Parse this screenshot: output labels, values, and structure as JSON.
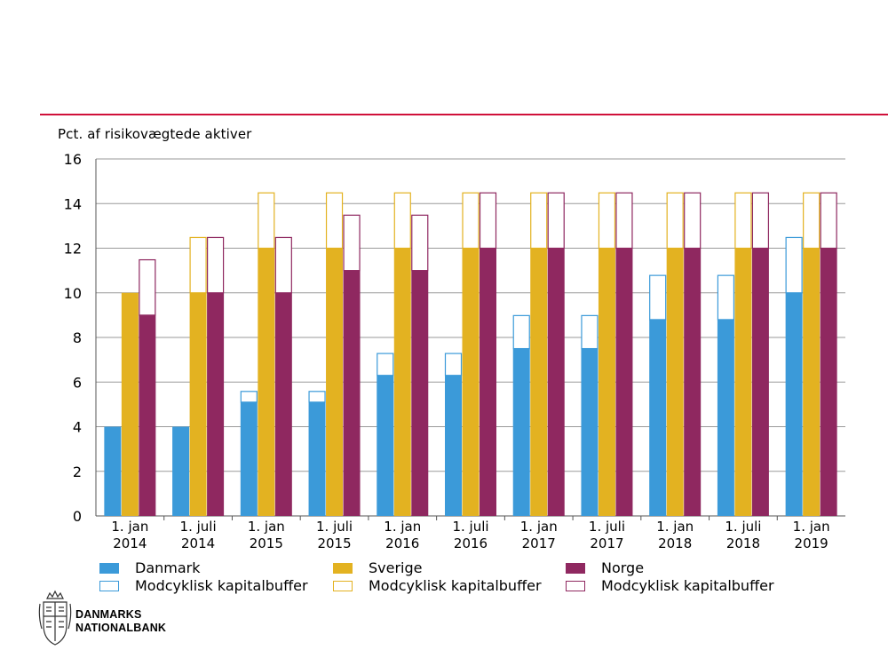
{
  "unit_label": "Pct. af risikovægtede aktiver",
  "colors": {
    "danmark": "#3b9ad9",
    "sverige": "#e3b221",
    "norge": "#8f2860",
    "rule": "#d0103a",
    "grid": "#9a9a9a"
  },
  "chart_data": {
    "type": "bar",
    "stacked_per_country": true,
    "title": "",
    "ylabel": "Pct. af risikovægtede aktiver",
    "ylim": [
      0,
      16
    ],
    "yticks": [
      0,
      2,
      4,
      6,
      8,
      10,
      12,
      14,
      16
    ],
    "grid": true,
    "categories": [
      [
        "1. jan",
        "2014"
      ],
      [
        "1. juli",
        "2014"
      ],
      [
        "1. jan",
        "2015"
      ],
      [
        "1. juli",
        "2015"
      ],
      [
        "1. jan",
        "2016"
      ],
      [
        "1. juli",
        "2016"
      ],
      [
        "1. jan",
        "2017"
      ],
      [
        "1. juli",
        "2017"
      ],
      [
        "1. jan",
        "2018"
      ],
      [
        "1. juli",
        "2018"
      ],
      [
        "1. jan",
        "2019"
      ]
    ],
    "series": [
      {
        "name": "Danmark",
        "key": "danmark",
        "values": [
          4,
          4,
          5.1,
          5.1,
          6.3,
          6.3,
          7.5,
          7.5,
          8.8,
          8.8,
          10
        ],
        "buffer": [
          0,
          0,
          0.5,
          0.5,
          1,
          1,
          1.5,
          1.5,
          2,
          2,
          2.5
        ]
      },
      {
        "name": "Sverige",
        "key": "sverige",
        "values": [
          10,
          10,
          12,
          12,
          12,
          12,
          12,
          12,
          12,
          12,
          12
        ],
        "buffer": [
          0,
          2.5,
          2.5,
          2.5,
          2.5,
          2.5,
          2.5,
          2.5,
          2.5,
          2.5,
          2.5
        ]
      },
      {
        "name": "Norge",
        "key": "norge",
        "values": [
          9,
          10,
          10,
          11,
          11,
          12,
          12,
          12,
          12,
          12,
          12
        ],
        "buffer": [
          2.5,
          2.5,
          2.5,
          2.5,
          2.5,
          2.5,
          2.5,
          2.5,
          2.5,
          2.5,
          2.5
        ]
      }
    ]
  },
  "legend": [
    {
      "key": "danmark",
      "label": "Danmark",
      "style": "solid"
    },
    {
      "key": "danmark",
      "label": "Modcyklisk kapitalbuffer",
      "style": "outline"
    },
    {
      "key": "sverige",
      "label": "Sverige",
      "style": "solid"
    },
    {
      "key": "sverige",
      "label": "Modcyklisk kapitalbuffer",
      "style": "outline"
    },
    {
      "key": "norge",
      "label": "Norge",
      "style": "solid"
    },
    {
      "key": "norge",
      "label": "Modcyklisk kapitalbuffer",
      "style": "outline"
    }
  ],
  "logo": {
    "line1": "DANMARKS",
    "line2": "NATIONALBANK",
    "crest": "coat-of-arms-icon"
  }
}
